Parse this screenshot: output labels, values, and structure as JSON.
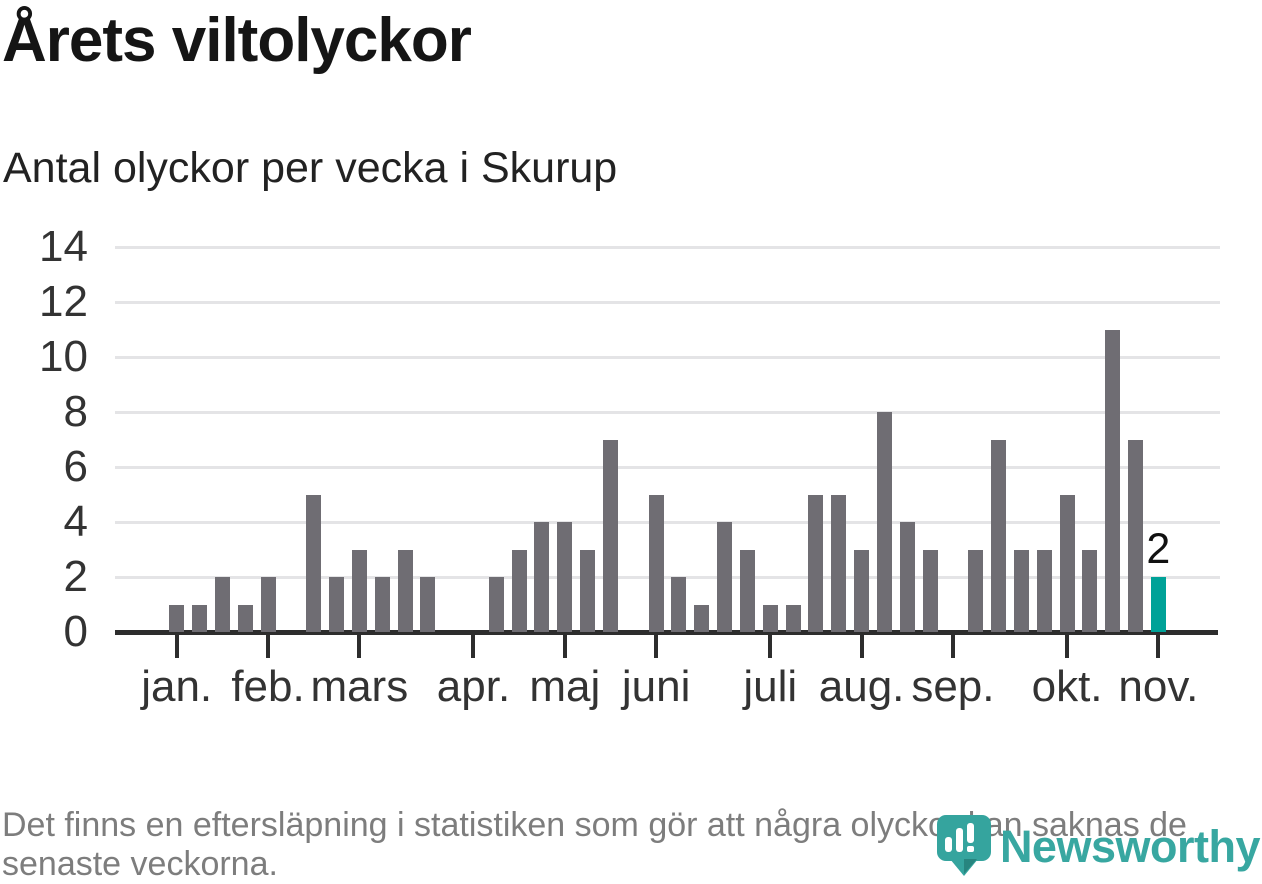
{
  "header": {
    "title": "Årets viltolyckor",
    "subtitle": "Antal olyckor per vecka i Skurup"
  },
  "chart_data": {
    "type": "bar",
    "title": "Årets viltolyckor",
    "subtitle": "Antal olyckor per vecka i Skurup",
    "xlabel": "",
    "ylabel": "Antal olyckor per vecka",
    "weeks": [
      1,
      2,
      3,
      4,
      5,
      6,
      7,
      8,
      9,
      10,
      11,
      12,
      13,
      14,
      15,
      16,
      17,
      18,
      19,
      20,
      21,
      22,
      23,
      24,
      25,
      26,
      27,
      28,
      29,
      30,
      31,
      32,
      33,
      34,
      35,
      36,
      37,
      38,
      39,
      40,
      41,
      42,
      43,
      44
    ],
    "values": [
      1,
      1,
      2,
      1,
      2,
      0,
      5,
      2,
      3,
      2,
      3,
      2,
      0,
      0,
      2,
      3,
      4,
      4,
      3,
      7,
      0,
      5,
      2,
      1,
      4,
      3,
      1,
      1,
      5,
      5,
      3,
      8,
      4,
      3,
      0,
      3,
      7,
      3,
      3,
      5,
      3,
      11,
      7,
      2
    ],
    "highlight_week": 44,
    "highlight_value_label": "2",
    "yticks": [
      0,
      2,
      4,
      6,
      8,
      10,
      12,
      14
    ],
    "ylim": [
      0,
      14
    ],
    "grid": true,
    "legend": "none",
    "month_ticks": [
      {
        "label": "jan.",
        "week": 1
      },
      {
        "label": "feb.",
        "week": 5
      },
      {
        "label": "mars",
        "week": 9
      },
      {
        "label": "apr.",
        "week": 14
      },
      {
        "label": "maj",
        "week": 18
      },
      {
        "label": "juni",
        "week": 22
      },
      {
        "label": "juli",
        "week": 27
      },
      {
        "label": "aug.",
        "week": 31
      },
      {
        "label": "sep.",
        "week": 35
      },
      {
        "label": "okt.",
        "week": 40
      },
      {
        "label": "nov.",
        "week": 44
      }
    ],
    "colors": {
      "bar": "#6f6d73",
      "highlight": "#00a298",
      "axis": "#2d2d2d",
      "grid": "#e4e4e6",
      "labels": "#333333"
    }
  },
  "footer": {
    "lines": [
      "Det finns en eftersläpning i statistiken som gör att några olyckor kan saknas de",
      "senaste veckorna."
    ]
  },
  "logo": {
    "name": "Newsworthy",
    "color": "#38a7a1",
    "icon": "newsworthy-bubble-barchart-icon"
  }
}
